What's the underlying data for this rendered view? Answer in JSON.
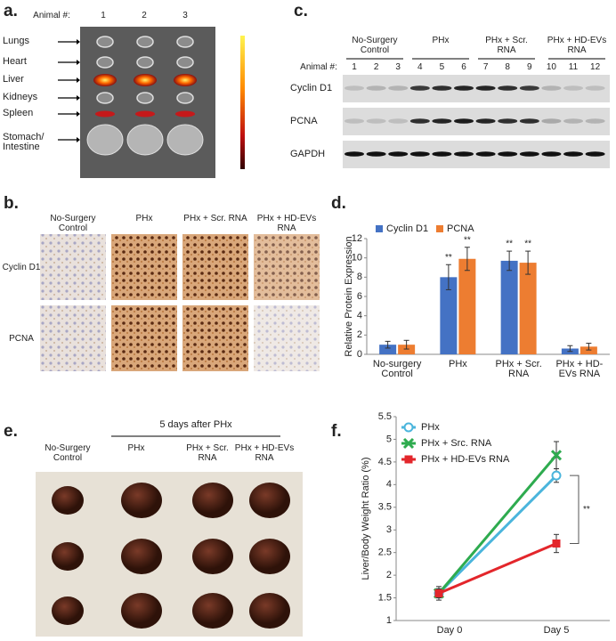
{
  "panels": {
    "a": {
      "label": "a.",
      "animal_label": "Animal #:",
      "animals": [
        "1",
        "2",
        "3"
      ],
      "organs": [
        "Lungs",
        "Heart",
        "Liver",
        "Kidneys",
        "Spleen",
        "Stomach/ Intestine"
      ]
    },
    "b": {
      "label": "b.",
      "columns": [
        "No-Surgery Control",
        "PHx",
        "PHx + Scr. RNA",
        "PHx + HD-EVs RNA"
      ],
      "rows": [
        "Cyclin D1",
        "PCNA"
      ]
    },
    "c": {
      "label": "c.",
      "groups": [
        "No-Surgery Control",
        "PHx",
        "PHx + Scr. RNA",
        "PHx + HD-EVs RNA"
      ],
      "animal_label": "Animal #:",
      "animals": [
        "1",
        "2",
        "3",
        "4",
        "5",
        "6",
        "7",
        "8",
        "9",
        "10",
        "11",
        "12"
      ],
      "proteins": [
        "Cyclin D1",
        "PCNA",
        "GAPDH"
      ]
    },
    "d": {
      "label": "d."
    },
    "e": {
      "label": "e.",
      "heading": "5 days after PHx",
      "columns": [
        "No-Surgery Control",
        "PHx",
        "PHx + Scr. RNA",
        "PHx + HD-EVs RNA"
      ]
    },
    "f": {
      "label": "f."
    }
  },
  "chart_data": [
    {
      "type": "bar",
      "y_label": "Relative Protein Expression",
      "categories": [
        "No-surgery Control",
        "PHx",
        "PHx + Scr. RNA",
        "PHx + HD-EVs RNA"
      ],
      "series": [
        {
          "name": "Cyclin D1",
          "color": "#4472c4",
          "values": [
            1.0,
            8.0,
            9.7,
            0.6
          ],
          "errors": [
            0.35,
            1.3,
            1.0,
            0.3
          ],
          "significance": [
            null,
            "**",
            "**",
            null
          ]
        },
        {
          "name": "PCNA",
          "color": "#ed7d31",
          "values": [
            1.0,
            9.9,
            9.5,
            0.8
          ],
          "errors": [
            0.45,
            1.2,
            1.2,
            0.35
          ],
          "significance": [
            null,
            "**",
            "**",
            null
          ]
        }
      ],
      "ylim": [
        0,
        12
      ],
      "yticks": [
        0,
        2,
        4,
        6,
        8,
        10,
        12
      ],
      "grid": false,
      "legend": "top"
    },
    {
      "type": "line",
      "y_label": "Liver/Body Weight Ratio (%)",
      "categories": [
        "Day 0",
        "Day 5"
      ],
      "series": [
        {
          "name": "PHx",
          "color": "#4bb5dc",
          "marker": "circle-open",
          "values": [
            1.6,
            4.2
          ],
          "errors": [
            0.1,
            0.15
          ]
        },
        {
          "name": "PHx + Src. RNA",
          "color": "#2eab4f",
          "marker": "x",
          "values": [
            1.6,
            4.65
          ],
          "errors": [
            0.1,
            0.3
          ]
        },
        {
          "name": "PHx + HD-EVs RNA",
          "color": "#e3262b",
          "marker": "square",
          "values": [
            1.6,
            2.7
          ],
          "errors": [
            0.15,
            0.2
          ]
        }
      ],
      "annotation": "**",
      "ylim": [
        1,
        5.5
      ],
      "yticks": [
        1,
        1.5,
        2,
        2.5,
        3,
        3.5,
        4,
        4.5,
        5,
        5.5
      ],
      "grid": false,
      "legend": "top-left"
    }
  ]
}
